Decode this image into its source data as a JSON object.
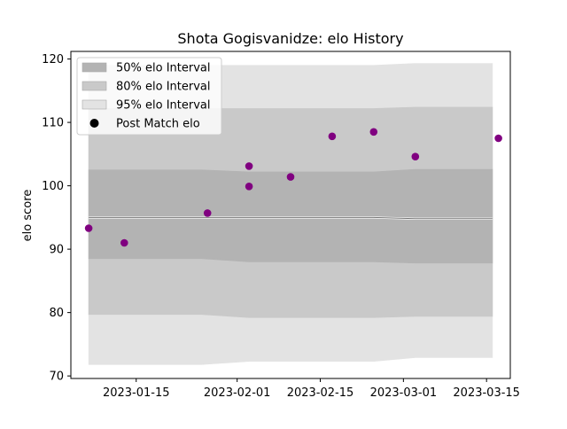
{
  "chart_data": {
    "type": "scatter",
    "title": "Shota Gogisvanidze: elo History",
    "xlabel": "",
    "ylabel": "elo score",
    "xlim": [
      "2023-01-04",
      "2023-03-19"
    ],
    "ylim": [
      69.6,
      121.2
    ],
    "x_ticks": [
      "2023-01-15",
      "2023-02-01",
      "2023-02-15",
      "2023-03-01",
      "2023-03-15"
    ],
    "y_ticks": [
      70,
      80,
      90,
      100,
      110,
      120
    ],
    "grid": false,
    "legend_position": "upper-left",
    "legend": [
      {
        "label": "50% elo Interval",
        "color": "#b3b3b3",
        "kind": "band"
      },
      {
        "label": "80% elo Interval",
        "color": "#c9c9c9",
        "kind": "band"
      },
      {
        "label": "95% elo Interval",
        "color": "#e3e3e3",
        "kind": "band"
      },
      {
        "label": "Post Match elo",
        "color": "#000000",
        "kind": "marker"
      }
    ],
    "bands": {
      "x": [
        "2023-01-07",
        "2023-01-13",
        "2023-01-26",
        "2023-02-03",
        "2023-02-10",
        "2023-02-17",
        "2023-02-24",
        "2023-03-03",
        "2023-03-16"
      ],
      "mean": [
        95.0,
        95.0,
        95.0,
        95.0,
        95.0,
        95.0,
        95.0,
        94.8,
        94.8
      ],
      "i50": {
        "lower": [
          88.5,
          88.5,
          88.5,
          88.0,
          88.0,
          88.0,
          88.0,
          87.8,
          87.8
        ],
        "upper": [
          102.5,
          102.5,
          102.5,
          102.2,
          102.2,
          102.2,
          102.2,
          102.6,
          102.6
        ]
      },
      "i80": {
        "lower": [
          79.7,
          79.7,
          79.7,
          79.2,
          79.2,
          79.2,
          79.2,
          79.4,
          79.4
        ],
        "upper": [
          112.2,
          112.2,
          112.2,
          112.2,
          112.2,
          112.2,
          112.2,
          112.4,
          112.4
        ]
      },
      "i95": {
        "lower": [
          71.8,
          71.8,
          71.8,
          72.3,
          72.3,
          72.3,
          72.3,
          72.9,
          72.9
        ],
        "upper": [
          119.0,
          119.0,
          119.0,
          119.0,
          119.0,
          119.0,
          119.0,
          119.3,
          119.3
        ]
      }
    },
    "series": [
      {
        "name": "Post Match elo",
        "color": "#800080",
        "points": [
          {
            "x": "2023-01-07",
            "y": 93.3
          },
          {
            "x": "2023-01-13",
            "y": 91.0
          },
          {
            "x": "2023-01-27",
            "y": 95.7
          },
          {
            "x": "2023-02-03",
            "y": 103.1
          },
          {
            "x": "2023-02-03",
            "y": 99.9
          },
          {
            "x": "2023-02-10",
            "y": 101.4
          },
          {
            "x": "2023-02-17",
            "y": 107.8
          },
          {
            "x": "2023-02-24",
            "y": 108.5
          },
          {
            "x": "2023-03-03",
            "y": 104.6
          },
          {
            "x": "2023-03-17",
            "y": 107.5
          }
        ]
      }
    ]
  }
}
